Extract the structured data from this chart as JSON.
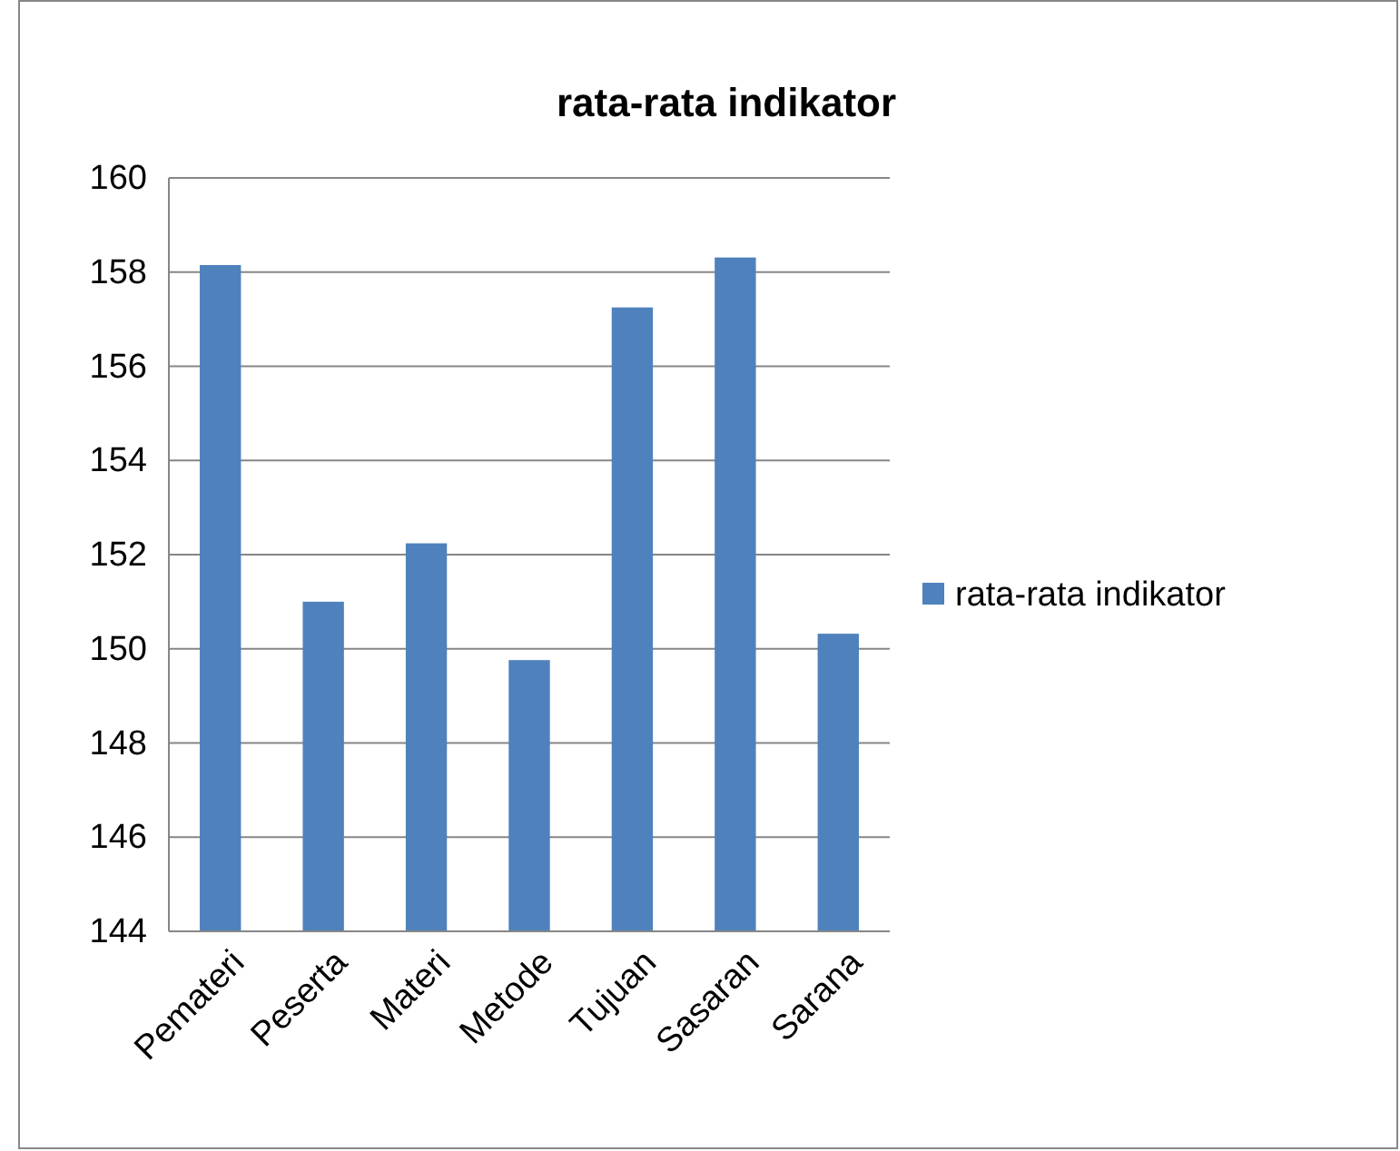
{
  "chart_data": {
    "type": "bar",
    "title": "rata-rata indikator",
    "categories": [
      "Pemateri",
      "Peserta",
      "Materi",
      "Metode",
      "Tujuan",
      "Sasaran",
      "Sarana"
    ],
    "series": [
      {
        "name": "rata-rata indikator",
        "color": "#4f81bd",
        "values": [
          158.15,
          151.0,
          152.24,
          149.76,
          157.25,
          158.31,
          150.32
        ]
      }
    ],
    "ylim": [
      144,
      160
    ],
    "yticks": [
      144,
      146,
      148,
      150,
      152,
      154,
      156,
      158,
      160
    ],
    "grid": "y",
    "legend": "right"
  }
}
